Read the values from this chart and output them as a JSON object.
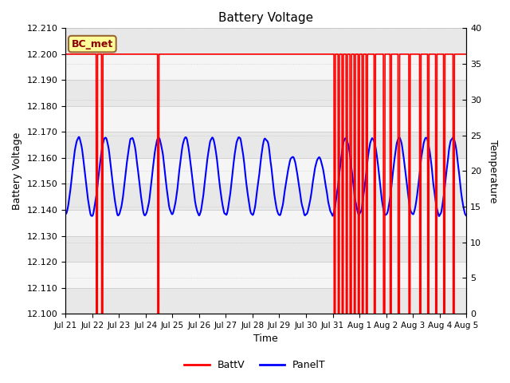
{
  "title": "Battery Voltage",
  "xlabel": "Time",
  "ylabel_left": "Battery Voltage",
  "ylabel_right": "Temperature",
  "left_ylim": [
    12.1,
    12.21
  ],
  "right_ylim": [
    0,
    40
  ],
  "left_yticks": [
    12.1,
    12.11,
    12.12,
    12.13,
    12.14,
    12.15,
    12.16,
    12.17,
    12.18,
    12.19,
    12.2,
    12.21
  ],
  "right_yticks": [
    0,
    5,
    10,
    15,
    20,
    25,
    30,
    35,
    40
  ],
  "xtick_labels": [
    "Jul 21",
    "Jul 22",
    "Jul 23",
    "Jul 24",
    "Jul 25",
    "Jul 26",
    "Jul 27",
    "Jul 28",
    "Jul 29",
    "Jul 30",
    "Jul 31",
    "Aug 1",
    "Aug 2",
    "Aug 3",
    "Aug 4",
    "Aug 5"
  ],
  "legend_entries": [
    "BattV",
    "PanelT"
  ],
  "annotation_text": "BC_met",
  "annotation_bg": "#ffff99",
  "annotation_border": "#996633",
  "battery_color": "red",
  "panel_color": "blue",
  "grid_color": "#cccccc",
  "bg_color": "#e8e8e8",
  "bg_color2": "#f5f5f5",
  "n_days": 15,
  "spike_positions": [
    1.15,
    1.35,
    3.45,
    10.05,
    10.2,
    10.35,
    10.5,
    10.65,
    10.8,
    10.95,
    11.1,
    11.25,
    11.55,
    11.9,
    12.15,
    12.45,
    12.85,
    13.25,
    13.55,
    13.85,
    14.15,
    14.5
  ],
  "panel_amplitude": 0.03,
  "panel_min": 12.138,
  "panel_period": 1.0,
  "panel_phase": 1.5
}
